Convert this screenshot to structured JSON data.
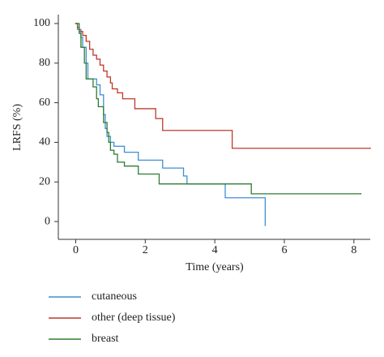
{
  "chart_data": {
    "type": "line",
    "step": true,
    "xlabel": "Time (years)",
    "ylabel": "LRFS (%)",
    "xlim": [
      -0.5,
      8.47
    ],
    "ylim": [
      -9,
      104.5
    ],
    "xticks": [
      0,
      2,
      4,
      6,
      8
    ],
    "yticks": [
      0,
      20,
      40,
      60,
      80,
      100
    ],
    "series": [
      {
        "name": "cutaneous",
        "color": "#3f8fd4",
        "x": [
          0,
          0.05,
          0.15,
          0.2,
          0.3,
          0.35,
          0.6,
          0.7,
          0.8,
          0.85,
          0.9,
          1.0,
          1.1,
          1.4,
          1.8,
          2.5,
          3.1,
          3.2,
          4.3,
          5.45
        ],
        "values": [
          100,
          97,
          93,
          88,
          80,
          72,
          69,
          64,
          54,
          47,
          43,
          40,
          38,
          35,
          31,
          27,
          23,
          19,
          12,
          -2
        ]
      },
      {
        "name": "other (deep tissue)",
        "color": "#c0392b",
        "x": [
          0,
          0.05,
          0.1,
          0.2,
          0.3,
          0.4,
          0.5,
          0.6,
          0.7,
          0.8,
          0.9,
          1.0,
          1.05,
          1.2,
          1.35,
          1.7,
          2.3,
          2.5,
          4.5,
          8.47
        ],
        "values": [
          100,
          98,
          96,
          94,
          91,
          87,
          84,
          82,
          79,
          76,
          73,
          70,
          67,
          65,
          62,
          57,
          52,
          46,
          37,
          37
        ]
      },
      {
        "name": "breast",
        "color": "#2e7d32",
        "x": [
          0,
          0.1,
          0.15,
          0.25,
          0.3,
          0.5,
          0.6,
          0.65,
          0.8,
          0.9,
          0.95,
          1.0,
          1.1,
          1.2,
          1.4,
          1.8,
          2.4,
          5.05,
          8.2
        ],
        "values": [
          100,
          95,
          88,
          80,
          72,
          68,
          62,
          58,
          50,
          45,
          40,
          36,
          34,
          30,
          28,
          24,
          19,
          14,
          14
        ]
      }
    ]
  }
}
